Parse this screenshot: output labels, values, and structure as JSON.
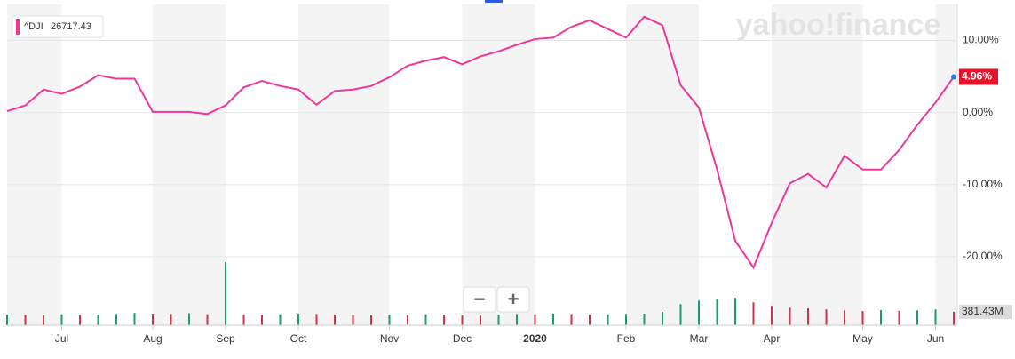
{
  "chart_data": {
    "type": "line",
    "watermark": "yahoo!finance",
    "controls": [
      "−",
      "+"
    ],
    "categories": [
      null,
      null,
      null,
      "Jul",
      null,
      null,
      null,
      null,
      "Aug",
      null,
      null,
      null,
      "Sep",
      null,
      null,
      null,
      "Oct",
      null,
      null,
      null,
      null,
      "Nov",
      null,
      null,
      null,
      "Dec",
      null,
      null,
      null,
      "2020",
      null,
      null,
      null,
      null,
      "Feb",
      null,
      null,
      null,
      "Mar",
      null,
      null,
      null,
      "Apr",
      null,
      null,
      null,
      null,
      "May",
      null,
      null,
      null,
      "Jun",
      null
    ],
    "series": [
      {
        "name": "^DJI",
        "color": "#f23598",
        "values": [
          0.2,
          1.0,
          3.2,
          2.6,
          3.6,
          5.2,
          4.7,
          4.7,
          0.1,
          0.1,
          0.1,
          -0.2,
          1.0,
          3.5,
          4.4,
          3.7,
          3.2,
          1.1,
          3.0,
          3.2,
          3.7,
          4.9,
          6.5,
          7.2,
          7.7,
          6.7,
          7.8,
          8.5,
          9.4,
          10.2,
          10.4,
          11.9,
          12.8,
          11.6,
          10.4,
          13.3,
          12.1,
          3.8,
          0.7,
          -7.9,
          -17.8,
          -21.5,
          -15.3,
          -9.8,
          -8.5,
          -10.4,
          -6.0,
          -7.9,
          -7.9,
          -5.2,
          -1.7,
          1.4,
          4.96
        ],
        "value_labels": [
          null,
          null,
          null,
          null,
          null,
          null,
          null,
          null,
          null,
          null,
          null,
          null,
          null,
          null,
          null,
          null,
          null,
          null,
          null,
          null,
          null,
          null,
          null,
          null,
          null,
          null,
          null,
          null,
          null,
          null,
          null,
          null,
          null,
          null,
          null,
          null,
          null,
          null,
          null,
          null,
          null,
          null,
          null,
          null,
          null,
          null,
          null,
          null,
          null,
          null,
          null,
          null,
          "4.96%"
        ]
      }
    ],
    "legend_value": 26717.43,
    "ylim": [
      -29.5,
      15
    ],
    "yticks": [
      {
        "value": 10,
        "label": "10.00%"
      },
      {
        "value": 0,
        "label": "0.00%"
      },
      {
        "value": -10,
        "label": "-10.00%"
      },
      {
        "value": -20,
        "label": "-20.00%"
      }
    ],
    "grid": true,
    "volume": {
      "values": [
        300,
        290,
        280,
        310,
        290,
        300,
        320,
        350,
        330,
        320,
        340,
        310,
        1800,
        300,
        290,
        310,
        330,
        320,
        300,
        290,
        280,
        300,
        290,
        310,
        300,
        280,
        270,
        300,
        320,
        310,
        330,
        320,
        300,
        310,
        320,
        330,
        380,
        600,
        700,
        750,
        780,
        650,
        550,
        500,
        480,
        450,
        420,
        400,
        430,
        410,
        420,
        450,
        381.43
      ],
      "value_labels": [
        null,
        null,
        null,
        null,
        null,
        null,
        null,
        null,
        null,
        null,
        null,
        null,
        null,
        null,
        null,
        null,
        null,
        null,
        null,
        null,
        null,
        null,
        null,
        null,
        null,
        null,
        null,
        null,
        null,
        null,
        null,
        null,
        null,
        null,
        null,
        null,
        null,
        null,
        null,
        null,
        null,
        null,
        null,
        null,
        null,
        null,
        null,
        null,
        null,
        null,
        null,
        null,
        "381.43M"
      ],
      "vlim": [
        0,
        2000
      ],
      "up_color": "#1a9a74",
      "down_color": "#d0324e"
    }
  }
}
